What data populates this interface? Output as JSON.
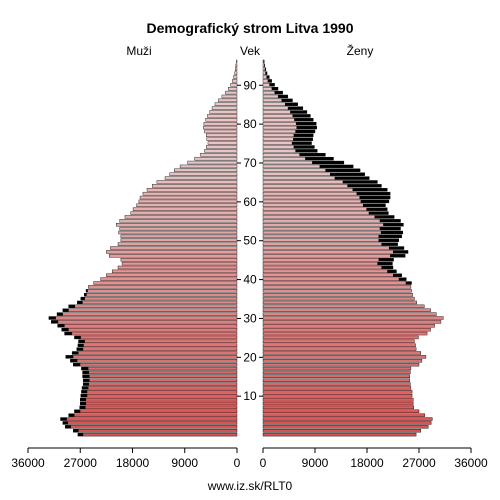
{
  "chart_data": {
    "type": "bar",
    "title": "Demografický strom Litva 1990",
    "left_label": "Muži",
    "center_label": "Vek",
    "right_label": "Ženy",
    "source": "www.iz.sk/RLT0",
    "x_ticks_left": [
      "36000",
      "27000",
      "18000",
      "9000",
      "0"
    ],
    "x_ticks_right": [
      "0",
      "9000",
      "18000",
      "27000",
      "36000"
    ],
    "x_tick_values": [
      0,
      9000,
      18000,
      27000,
      36000
    ],
    "y_ticks": [
      10,
      20,
      30,
      40,
      50,
      60,
      70,
      80,
      90
    ],
    "xlim": [
      0,
      36000
    ],
    "ylim": [
      0,
      96
    ],
    "colors": {
      "male_young": "#d85050",
      "male_old": "#e8c4c4",
      "female_young": "#d85050",
      "female_old": "#e8c4c4",
      "surplus": "#000000"
    },
    "series": [
      {
        "name": "Muži",
        "ages": [
          0,
          1,
          2,
          3,
          4,
          5,
          6,
          7,
          8,
          9,
          10,
          11,
          12,
          13,
          14,
          15,
          16,
          17,
          18,
          19,
          20,
          21,
          22,
          23,
          24,
          25,
          26,
          27,
          28,
          29,
          30,
          31,
          32,
          33,
          34,
          35,
          36,
          37,
          38,
          39,
          40,
          41,
          42,
          43,
          44,
          45,
          46,
          47,
          48,
          49,
          50,
          51,
          52,
          53,
          54,
          55,
          56,
          57,
          58,
          59,
          60,
          61,
          62,
          63,
          64,
          65,
          66,
          67,
          68,
          69,
          70,
          71,
          72,
          73,
          74,
          75,
          76,
          77,
          78,
          79,
          80,
          81,
          82,
          83,
          84,
          85,
          86,
          87,
          88,
          89,
          90,
          91,
          92,
          93,
          94,
          95,
          96
        ],
        "values": [
          27400,
          28200,
          29600,
          30000,
          30400,
          29000,
          28000,
          27100,
          27000,
          27000,
          26900,
          26800,
          26700,
          26500,
          26500,
          26600,
          26600,
          26800,
          28200,
          28700,
          29500,
          28400,
          27600,
          27400,
          27300,
          28000,
          29700,
          30200,
          30900,
          32000,
          32400,
          31000,
          30000,
          29000,
          27500,
          26900,
          26300,
          26000,
          25600,
          24700,
          23500,
          22500,
          21500,
          20500,
          19800,
          20000,
          22000,
          22500,
          21800,
          20500,
          20000,
          20000,
          20400,
          20200,
          20800,
          20200,
          19300,
          18300,
          17900,
          17300,
          16900,
          16700,
          16200,
          15500,
          14600,
          13800,
          12400,
          11600,
          10800,
          9800,
          8500,
          7300,
          6300,
          5600,
          5300,
          5000,
          5200,
          5300,
          5600,
          5800,
          5700,
          5400,
          5100,
          4700,
          4300,
          3800,
          3200,
          2600,
          2000,
          1500,
          1100,
          800,
          600,
          400,
          300,
          200,
          100
        ]
      },
      {
        "name": "Ženy",
        "ages": [
          0,
          1,
          2,
          3,
          4,
          5,
          6,
          7,
          8,
          9,
          10,
          11,
          12,
          13,
          14,
          15,
          16,
          17,
          18,
          19,
          20,
          21,
          22,
          23,
          24,
          25,
          26,
          27,
          28,
          29,
          30,
          31,
          32,
          33,
          34,
          35,
          36,
          37,
          38,
          39,
          40,
          41,
          42,
          43,
          44,
          45,
          46,
          47,
          48,
          49,
          50,
          51,
          52,
          53,
          54,
          55,
          56,
          57,
          58,
          59,
          60,
          61,
          62,
          63,
          64,
          65,
          66,
          67,
          68,
          69,
          70,
          71,
          72,
          73,
          74,
          75,
          76,
          77,
          78,
          79,
          80,
          81,
          82,
          83,
          84,
          85,
          86,
          87,
          88,
          89,
          90,
          91,
          92,
          93,
          94,
          95,
          96
        ],
        "values": [
          26500,
          27300,
          28600,
          29100,
          29300,
          28000,
          27000,
          26100,
          26000,
          26000,
          25800,
          25800,
          25600,
          25500,
          25400,
          25400,
          25500,
          25600,
          27000,
          27500,
          28200,
          27300,
          26500,
          26400,
          26200,
          26900,
          28400,
          29000,
          29700,
          30800,
          31200,
          30000,
          29000,
          27900,
          26600,
          26200,
          25900,
          25700,
          25600,
          25700,
          24800,
          24000,
          23100,
          22500,
          22400,
          22600,
          24600,
          25100,
          24400,
          23300,
          23500,
          24000,
          24200,
          23800,
          24300,
          23800,
          22700,
          21700,
          21500,
          21200,
          21800,
          22000,
          22000,
          21500,
          20500,
          19800,
          18400,
          17600,
          16800,
          15600,
          14000,
          12200,
          10800,
          9400,
          8900,
          8400,
          8600,
          8700,
          9000,
          9300,
          9200,
          8700,
          8200,
          7600,
          6900,
          6000,
          5100,
          4300,
          3400,
          2600,
          2000,
          1500,
          1100,
          700,
          500,
          300,
          200
        ]
      }
    ]
  }
}
